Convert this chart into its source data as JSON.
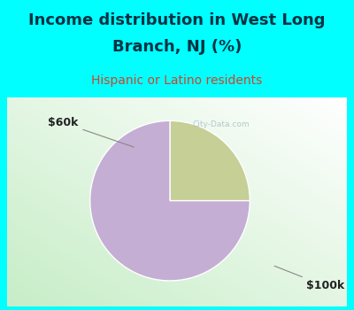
{
  "title_line1": "Income distribution in West Long",
  "title_line2": "Branch, NJ (%)",
  "subtitle": "Hispanic or Latino residents",
  "slices": [
    {
      "label": "$60k",
      "value": 25,
      "color": "#c5cf96"
    },
    {
      "label": "$100k",
      "value": 75,
      "color": "#c4aed4"
    }
  ],
  "bg_color": "#00ffff",
  "chart_bg_left": "#c8e8c8",
  "chart_bg_right": "#ffffff",
  "title_color": "#003344",
  "subtitle_color": "#d04428",
  "label_color": "#222222",
  "watermark": "City-Data.com",
  "watermark_color": "#a0b8c0",
  "figsize": [
    4.0,
    3.5
  ],
  "dpi": 100
}
